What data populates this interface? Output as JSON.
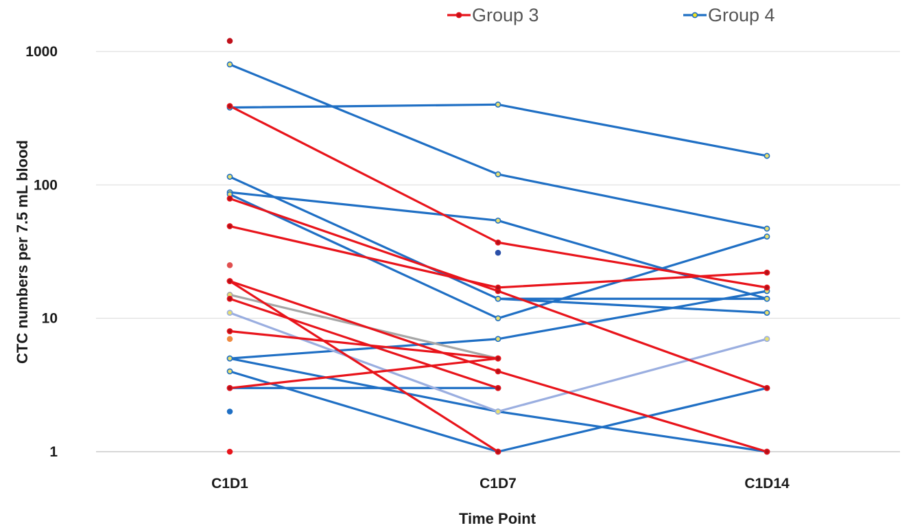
{
  "chart_data": {
    "type": "line",
    "title": "",
    "xlabel": "Time Point",
    "ylabel": "CTC numbers per 7.5 mL blood",
    "y_scale": "log",
    "ylim": [
      1,
      1000
    ],
    "y_ticks": [
      "1",
      "10",
      "100",
      "1000"
    ],
    "categories": [
      "C1D1",
      "C1D7",
      "C1D14"
    ],
    "grid": "horizontal",
    "legend": {
      "position": "top",
      "entries": [
        {
          "label": "Group 3",
          "color": "#e8141b",
          "marker": "#c0101a"
        },
        {
          "label": "Group 4",
          "color": "#1f6fc4",
          "marker": "#f0e020"
        }
      ]
    },
    "series": [
      {
        "group": "Group 4",
        "color": "#1f6fc4",
        "values": [
          800,
          120,
          47
        ]
      },
      {
        "group": "Group 4",
        "color": "#1f6fc4",
        "values": [
          380,
          400,
          165
        ]
      },
      {
        "group": "Group 4",
        "color": "#1f6fc4",
        "values": [
          115,
          14,
          14
        ]
      },
      {
        "group": "Group 4",
        "color": "#1f6fc4",
        "values": [
          88,
          54,
          14
        ]
      },
      {
        "group": "Group 4",
        "color": "#1f6fc4",
        "values": [
          85,
          10,
          41
        ]
      },
      {
        "group": "Group 4",
        "color": "#1f6fc4",
        "values": [
          null,
          14,
          11
        ]
      },
      {
        "group": "Group 4",
        "color": "#1f6fc4",
        "values": [
          5,
          7,
          16
        ]
      },
      {
        "group": "Group 4",
        "color": "#1f6fc4",
        "values": [
          5,
          2,
          1
        ]
      },
      {
        "group": "Group 4",
        "color": "#1f6fc4",
        "values": [
          4,
          1,
          3
        ]
      },
      {
        "group": "Group 4",
        "color": "#1f6fc4",
        "values": [
          3,
          3,
          null
        ]
      },
      {
        "group": "Group 4",
        "color": "#9aaee0",
        "values": [
          11,
          2,
          7
        ]
      },
      {
        "group": "Group 4",
        "color": "#a6a6a6",
        "values": [
          15,
          5,
          null
        ]
      },
      {
        "group": "Group 3",
        "color": "#e8141b",
        "values": [
          390,
          37,
          17
        ]
      },
      {
        "group": "Group 3",
        "color": "#e8141b",
        "values": [
          79,
          16,
          3
        ]
      },
      {
        "group": "Group 3",
        "color": "#e8141b",
        "values": [
          49,
          17,
          22
        ]
      },
      {
        "group": "Group 3",
        "color": "#e8141b",
        "values": [
          19,
          4,
          1
        ]
      },
      {
        "group": "Group 3",
        "color": "#e8141b",
        "values": [
          14,
          3,
          null
        ]
      },
      {
        "group": "Group 3",
        "color": "#e8141b",
        "values": [
          19,
          1,
          null
        ]
      },
      {
        "group": "Group 3",
        "color": "#e8141b",
        "values": [
          8,
          5,
          null
        ]
      },
      {
        "group": "Group 3",
        "color": "#e8141b",
        "values": [
          3,
          5,
          null
        ]
      }
    ],
    "isolated_points": [
      {
        "category": "C1D1",
        "value": 1200,
        "color": "#c0101a"
      },
      {
        "category": "C1D1",
        "value": 25,
        "color": "#e05050"
      },
      {
        "category": "C1D1",
        "value": 7,
        "color": "#f08a40"
      },
      {
        "category": "C1D1",
        "value": 2,
        "color": "#1f6fc4"
      },
      {
        "category": "C1D1",
        "value": 1,
        "color": "#e8141b"
      },
      {
        "category": "C1D7",
        "value": 31,
        "color": "#2a4fa8"
      }
    ]
  }
}
